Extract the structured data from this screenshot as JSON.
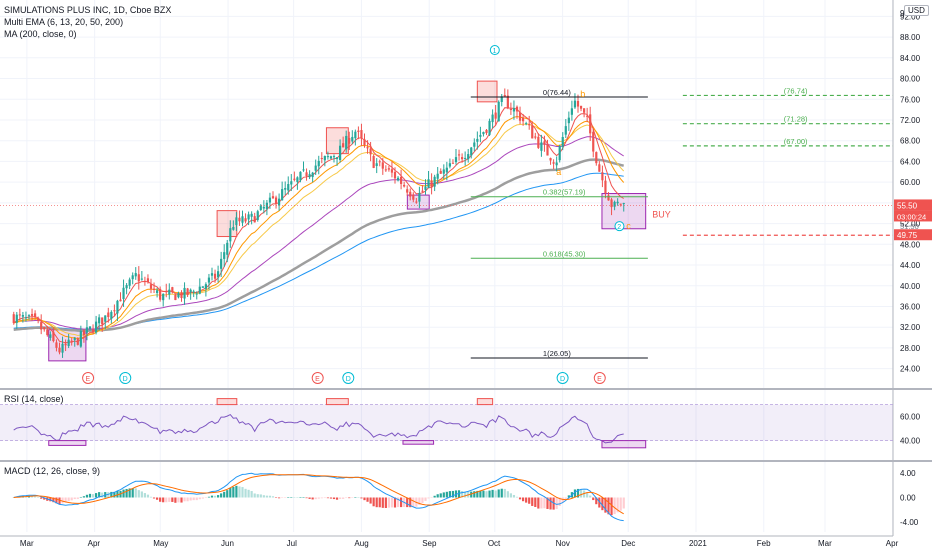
{
  "header": {
    "title": "SIMULATIONS PLUS INC, 1D, Cboe BZX",
    "ind1": "Multi EMA (6, 13, 20, 50, 200)",
    "ind2": "MA (200, close, 0)",
    "currency": "USD"
  },
  "rsi_panel": {
    "label": "RSI (14, close)"
  },
  "macd_panel": {
    "label": "MACD (12, 26, close, 9)"
  },
  "colors": {
    "price_up": "#26a69a",
    "price_down": "#ef5350",
    "ema6": "#ef5350",
    "ema13": "#ff9800",
    "ema20": "#f7c948",
    "ema50": "#ab47bc",
    "ema200": "#9e9e9e",
    "ma200": "#2196f3",
    "rsi": "#7e57c2",
    "macd": "#2196f3",
    "signal": "#ff6d00",
    "box_purple": "#9c27b0",
    "box_red": "#ef5350",
    "fib": "#4caf50"
  },
  "chart_data": [
    {
      "type": "candlestick",
      "title": "SIMULATIONS PLUS INC, 1D, Cboe BZX",
      "x_ticks": [
        "Mar",
        "Apr",
        "May",
        "Jun",
        "Jul",
        "Aug",
        "Sep",
        "Oct",
        "Nov",
        "Dec",
        "2021",
        "Feb",
        "Mar",
        "Apr"
      ],
      "y_ticks": [
        24.0,
        28.0,
        32.0,
        36.0,
        40.0,
        44.0,
        48.0,
        52.0,
        56.0,
        60.0,
        64.0,
        68.0,
        72.0,
        76.0,
        80.0,
        84.0,
        88.0,
        92.0
      ],
      "ylim": [
        22,
        94
      ],
      "price_anchors": [
        {
          "date": "2020-02-24",
          "close": 34.0
        },
        {
          "date": "2020-03-05",
          "close": 33.0
        },
        {
          "date": "2020-03-16",
          "close": 27.5
        },
        {
          "date": "2020-03-24",
          "close": 29.5
        },
        {
          "date": "2020-04-06",
          "close": 34.0
        },
        {
          "date": "2020-04-20",
          "close": 42.0
        },
        {
          "date": "2020-05-01",
          "close": 38.0
        },
        {
          "date": "2020-05-15",
          "close": 38.5
        },
        {
          "date": "2020-05-27",
          "close": 42.0
        },
        {
          "date": "2020-06-03",
          "close": 52.0
        },
        {
          "date": "2020-06-12",
          "close": 53.0
        },
        {
          "date": "2020-06-26",
          "close": 58.0
        },
        {
          "date": "2020-07-10",
          "close": 63.0
        },
        {
          "date": "2020-07-22",
          "close": 66.0
        },
        {
          "date": "2020-07-29",
          "close": 70.0
        },
        {
          "date": "2020-08-06",
          "close": 64.0
        },
        {
          "date": "2020-08-17",
          "close": 61.0
        },
        {
          "date": "2020-08-26",
          "close": 57.0
        },
        {
          "date": "2020-09-02",
          "close": 60.0
        },
        {
          "date": "2020-09-11",
          "close": 63.0
        },
        {
          "date": "2020-09-18",
          "close": 66.0
        },
        {
          "date": "2020-09-28",
          "close": 71.0
        },
        {
          "date": "2020-10-05",
          "close": 76.0
        },
        {
          "date": "2020-10-12",
          "close": 73.0
        },
        {
          "date": "2020-10-22",
          "close": 67.0
        },
        {
          "date": "2020-10-29",
          "close": 64.0
        },
        {
          "date": "2020-11-06",
          "close": 76.0
        },
        {
          "date": "2020-11-12",
          "close": 72.0
        },
        {
          "date": "2020-11-18",
          "close": 62.0
        },
        {
          "date": "2020-11-24",
          "close": 55.0
        },
        {
          "date": "2020-11-27",
          "close": 56.0
        },
        {
          "date": "2020-11-30",
          "close": 55.5
        }
      ],
      "last_price": "55.50",
      "countdown": "03:00:24",
      "fib_levels": [
        {
          "label": "0(76.44)",
          "value": 76.44
        },
        {
          "label": "0.382(57.19)",
          "value": 57.19
        },
        {
          "label": "0.618(45.30)",
          "value": 45.3
        },
        {
          "label": "1(26.05)",
          "value": 26.05
        }
      ],
      "targets": [
        {
          "label": "(76.74)",
          "value": 76.74
        },
        {
          "label": "(71.28)",
          "value": 71.28
        },
        {
          "label": "(67.00)",
          "value": 67.0
        }
      ],
      "stop_level": {
        "label": "49.75",
        "value": 49.75
      },
      "extra_axis_label": "51.50",
      "wave_labels": [
        {
          "text": "1",
          "date": "2020-10-01",
          "price": 85.5,
          "style": "circle-blue"
        },
        {
          "text": "2",
          "date": "2020-11-27",
          "price": 51.5,
          "style": "circle-blue"
        },
        {
          "text": "a",
          "date": "2020-10-30",
          "price": 62.0,
          "style": "orange"
        },
        {
          "text": "b",
          "date": "2020-11-10",
          "price": 77.0,
          "style": "orange"
        },
        {
          "text": "c",
          "date": "2020-12-01",
          "price": 51.5,
          "style": "orange"
        }
      ],
      "signal_text": "BUY",
      "event_markers": [
        "E",
        "D",
        "E",
        "D",
        "D",
        "E"
      ]
    },
    {
      "type": "line",
      "title": "RSI (14, close)",
      "y_ticks": [
        40.0,
        60.0
      ],
      "ylim": [
        28,
        78
      ],
      "band": [
        40,
        70
      ]
    },
    {
      "type": "bar",
      "title": "MACD (12, 26, close, 9)",
      "y_ticks": [
        4.0,
        0.0,
        -4.0
      ],
      "ylim": [
        -5,
        5
      ],
      "series": [
        {
          "name": "MACD"
        },
        {
          "name": "Signal"
        },
        {
          "name": "Histogram"
        }
      ]
    }
  ]
}
